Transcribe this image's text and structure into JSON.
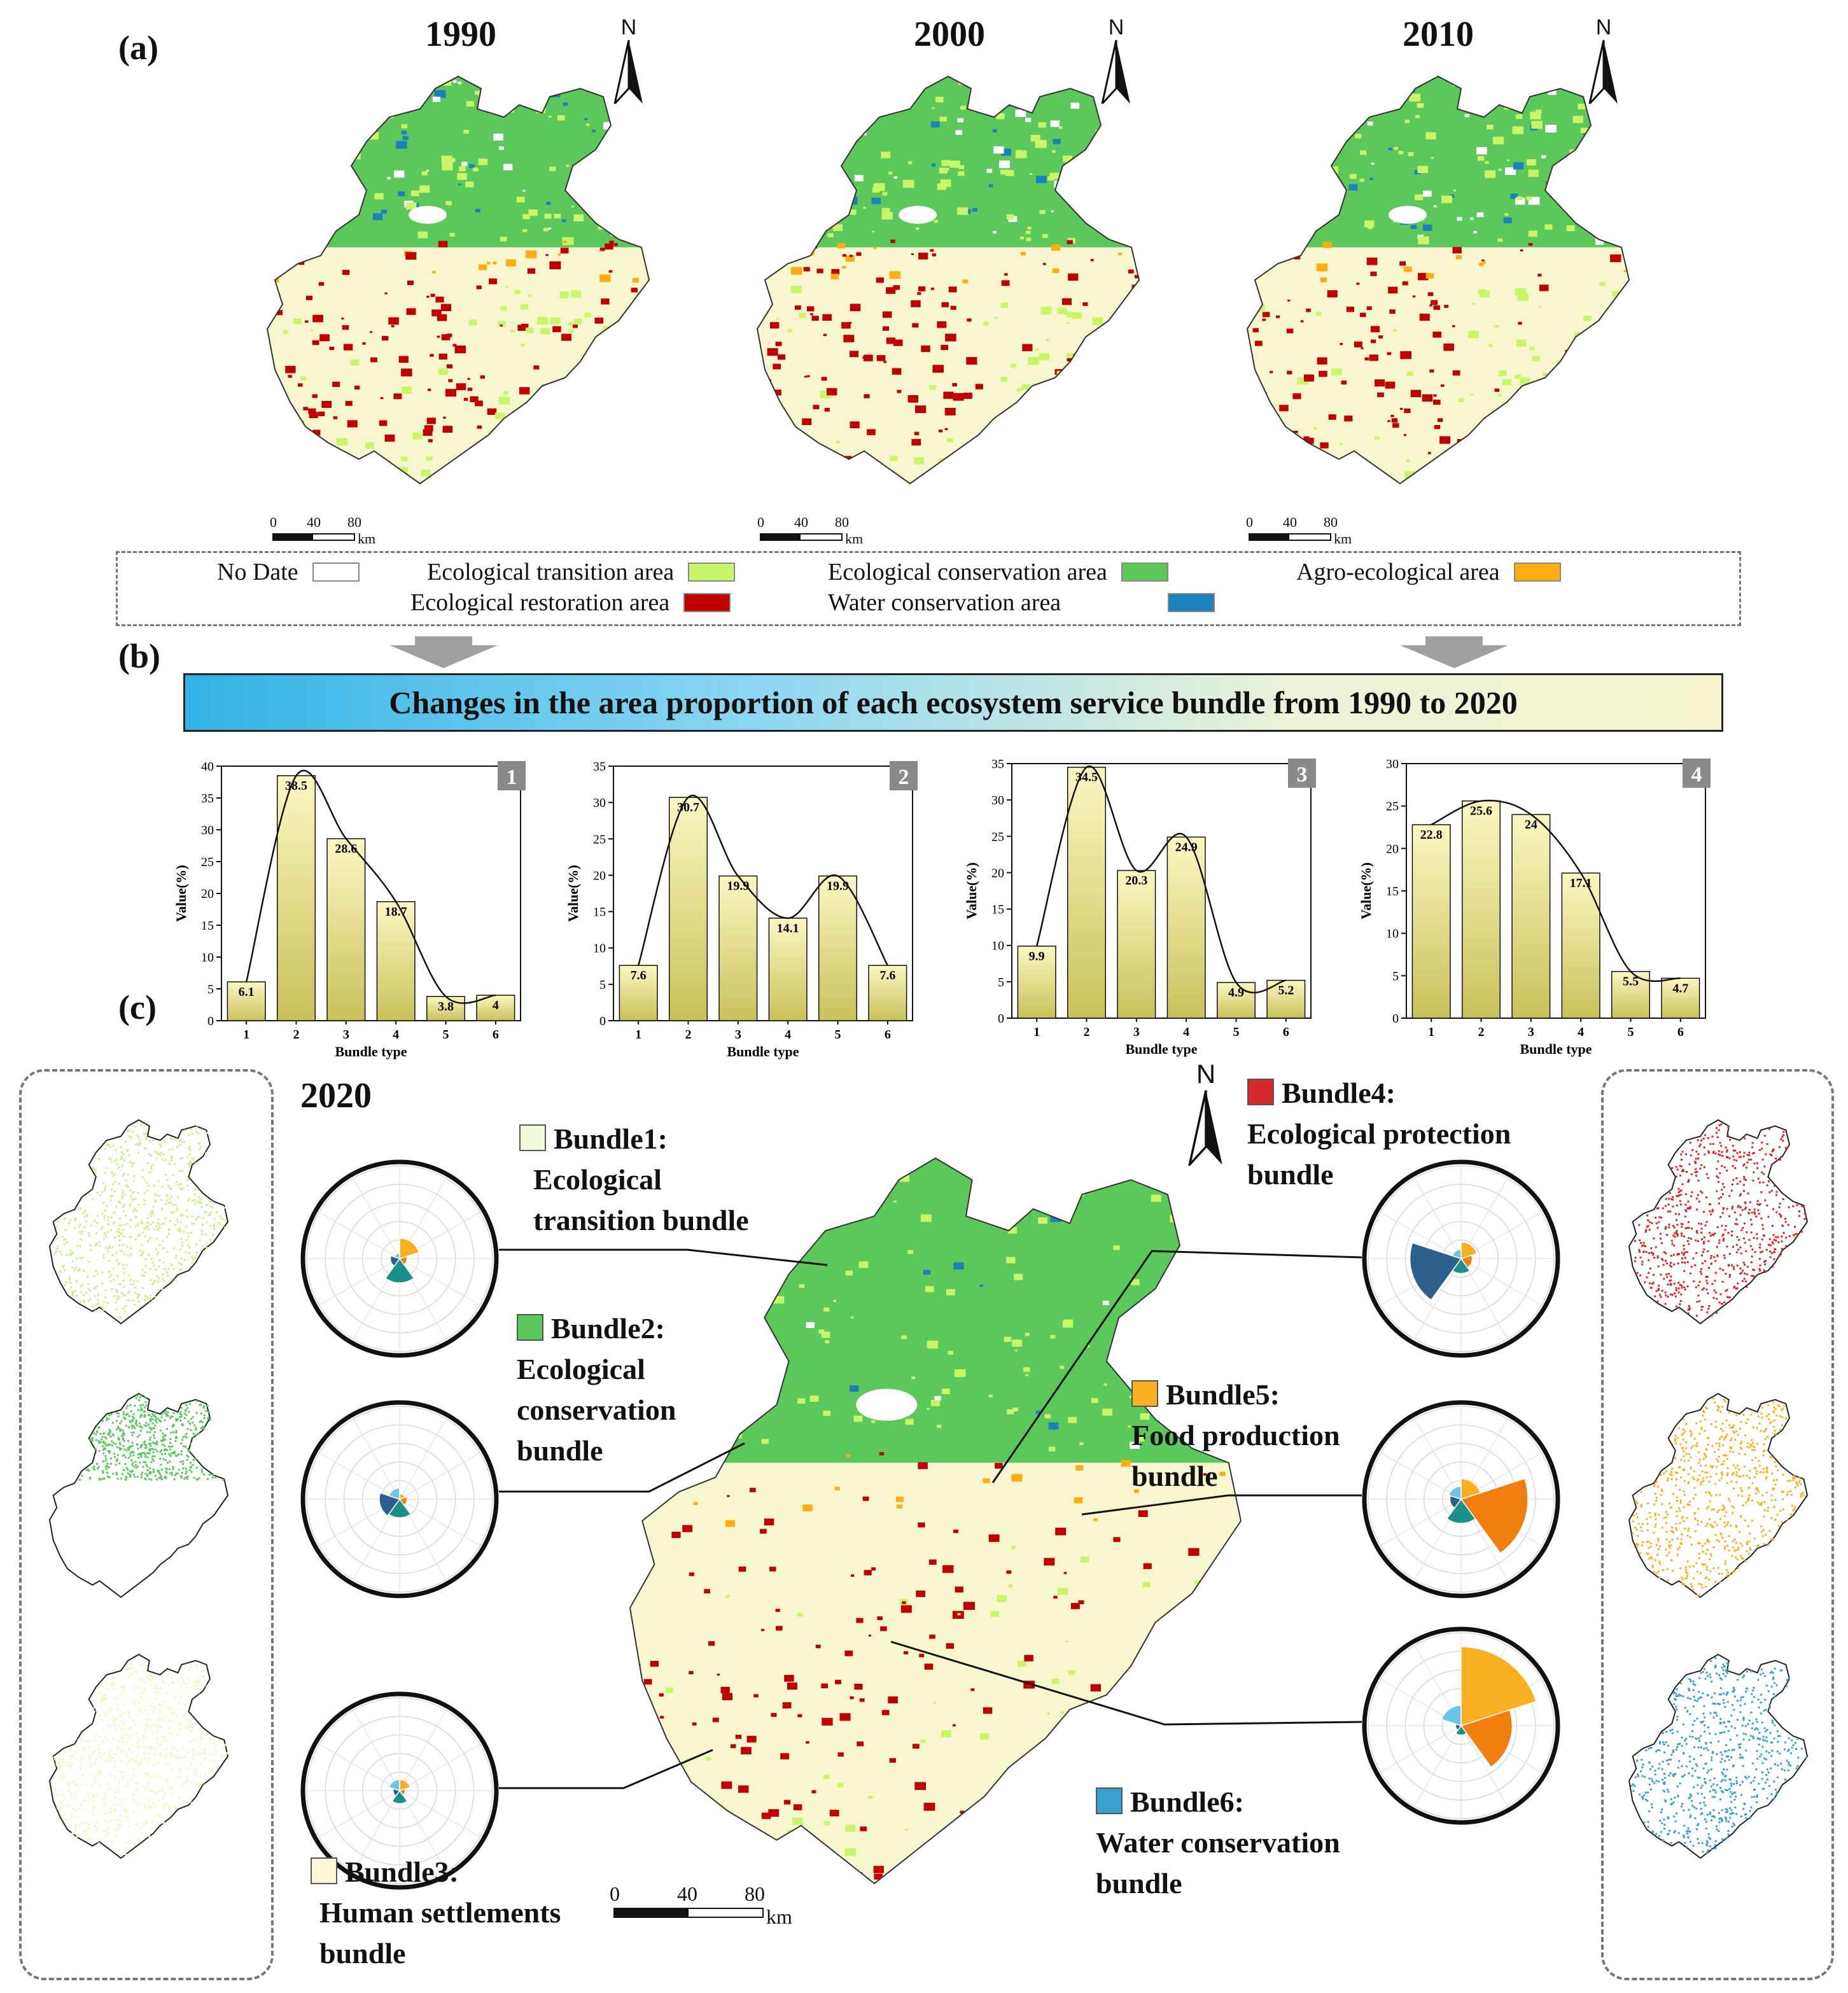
{
  "panels": {
    "a": "(a)",
    "b": "(b)",
    "c": "(c)"
  },
  "years": [
    "1990",
    "2000",
    "2010",
    "2020"
  ],
  "north_label": "N",
  "scale_bar": {
    "ticks": [
      "0",
      "40",
      "80"
    ],
    "unit": "km"
  },
  "legend": [
    {
      "label": "No Date",
      "color": "#ffffff"
    },
    {
      "label": "Ecological transition area",
      "color": "#c8f56a"
    },
    {
      "label": "Ecological conservation area",
      "color": "#5cc85c"
    },
    {
      "label": "Agro-ecological area",
      "color": "#ffad10"
    },
    {
      "label": "Ecological restoration area",
      "color": "#c00000"
    },
    {
      "label": "Water conservation area",
      "color": "#1a82b8"
    }
  ],
  "banner_title": "Changes in the area proportion of each ecosystem service bundle from 1990 to 2020",
  "chart_data": [
    {
      "type": "bar",
      "panel": "1",
      "categories": [
        "1",
        "2",
        "3",
        "4",
        "5",
        "6"
      ],
      "values": [
        6.1,
        38.5,
        28.6,
        18.7,
        3.8,
        4
      ],
      "value_labels": [
        "6.1",
        "38.5",
        "28.6",
        "18.7",
        "3.8",
        "4"
      ],
      "ylim": [
        0,
        40
      ],
      "yticks": [
        "0",
        "5",
        "10",
        "15",
        "20",
        "25",
        "30",
        "35",
        "40"
      ],
      "xlabel": "Bundle type",
      "ylabel": "Value(%)"
    },
    {
      "type": "bar",
      "panel": "2",
      "categories": [
        "1",
        "2",
        "3",
        "4",
        "5",
        "6"
      ],
      "values": [
        7.6,
        30.7,
        19.9,
        14.1,
        19.9,
        7.6
      ],
      "value_labels": [
        "7.6",
        "30.7",
        "19.9",
        "14.1",
        "19.9",
        "7.6"
      ],
      "ylim": [
        0,
        35
      ],
      "yticks": [
        "0",
        "5",
        "10",
        "15",
        "20",
        "25",
        "30",
        "35"
      ],
      "xlabel": "Bundle type",
      "ylabel": "Value(%)"
    },
    {
      "type": "bar",
      "panel": "3",
      "categories": [
        "1",
        "2",
        "3",
        "4",
        "5",
        "6"
      ],
      "values": [
        9.9,
        34.5,
        20.3,
        24.9,
        4.9,
        5.2
      ],
      "value_labels": [
        "9.9",
        "34.5",
        "20.3",
        "24.9",
        "4.9",
        "5.2"
      ],
      "ylim": [
        0,
        35
      ],
      "yticks": [
        "0",
        "5",
        "10",
        "15",
        "20",
        "25",
        "30",
        "35"
      ],
      "xlabel": "Bundle type",
      "ylabel": "Value(%)"
    },
    {
      "type": "bar",
      "panel": "4",
      "categories": [
        "1",
        "2",
        "3",
        "4",
        "5",
        "6"
      ],
      "values": [
        22.8,
        25.6,
        24,
        17.1,
        5.5,
        4.7
      ],
      "value_labels": [
        "22.8",
        "25.6",
        "24",
        "17.1",
        "5.5",
        "4.7"
      ],
      "ylim": [
        0,
        30
      ],
      "yticks": [
        "0",
        "5",
        "10",
        "15",
        "20",
        "25",
        "30"
      ],
      "xlabel": "Bundle type",
      "ylabel": "Value(%)"
    }
  ],
  "bundles": [
    {
      "title": "Bundle1:",
      "name": "Ecological transition bundle",
      "lines": [
        "Ecological",
        "transition bundle"
      ],
      "color": "#eefad8"
    },
    {
      "title": "Bundle2:",
      "name": "Ecological conservation bundle",
      "lines": [
        "Ecological",
        "conservation",
        "bundle"
      ],
      "color": "#5cc85c"
    },
    {
      "title": "Bundle3:",
      "name": "Human settlements bundle",
      "lines": [
        "Human settlements",
        "bundle"
      ],
      "color": "#fbf8d8"
    },
    {
      "title": "Bundle4:",
      "name": "Ecological protection bundle",
      "lines": [
        "Ecological protection",
        "bundle"
      ],
      "color": "#d42a2a"
    },
    {
      "title": "Bundle5:",
      "name": "Food production bundle",
      "lines": [
        "Food production",
        "bundle"
      ],
      "color": "#f8b020"
    },
    {
      "title": "Bundle6:",
      "name": "Water conservation bundle",
      "lines": [
        "Water conservation",
        "bundle"
      ],
      "color": "#3aa0d0"
    }
  ],
  "rose_colors": [
    "#f8b020",
    "#f07f10",
    "#1a9088",
    "#2c5f8a",
    "#6cc4e8"
  ],
  "roses": [
    {
      "bundle": "Bundle1",
      "values": [
        0.22,
        0.08,
        0.26,
        0.1,
        0.06
      ]
    },
    {
      "bundle": "Bundle2",
      "values": [
        0.06,
        0.08,
        0.2,
        0.22,
        0.12
      ]
    },
    {
      "bundle": "Bundle3",
      "values": [
        0.12,
        0.06,
        0.14,
        0.07,
        0.12
      ]
    },
    {
      "bundle": "Bundle4",
      "values": [
        0.18,
        0.12,
        0.16,
        0.55,
        0.1
      ]
    },
    {
      "bundle": "Bundle5",
      "values": [
        0.22,
        0.72,
        0.26,
        0.12,
        0.14
      ]
    },
    {
      "bundle": "Bundle6",
      "values": [
        0.85,
        0.55,
        0.1,
        0.06,
        0.22
      ]
    }
  ]
}
